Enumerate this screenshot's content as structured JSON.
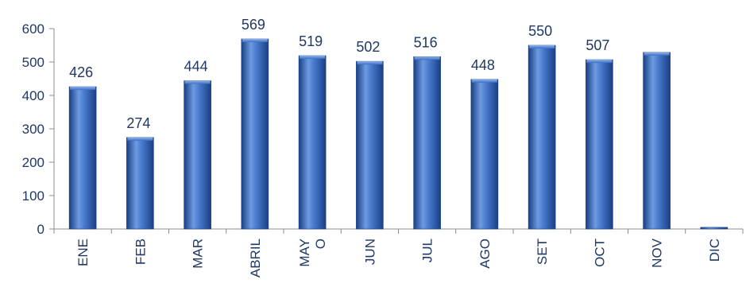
{
  "chart_data": {
    "type": "bar",
    "categories": [
      "ENE",
      "FEB",
      "MAR",
      "ABRIL",
      "MAY\nO",
      "JUN",
      "JUL",
      "AGO",
      "SET",
      "OCT",
      "NOV",
      "DIC"
    ],
    "values": [
      426,
      274,
      444,
      569,
      519,
      502,
      516,
      448,
      550,
      507,
      529,
      5
    ],
    "data_labels": [
      "426",
      "274",
      "444",
      "569",
      "519",
      "502",
      "516",
      "448",
      "550",
      "507",
      "",
      ""
    ],
    "title": "",
    "xlabel": "",
    "ylabel": "",
    "ylim": [
      0,
      600
    ],
    "yticks": [
      "0",
      "100",
      "200",
      "300",
      "400",
      "500",
      "600"
    ],
    "grid": false,
    "legend": "none",
    "bar_color": "#3b6fc4",
    "bar_dark": "#1a3f84",
    "bar_light": "#6d9ae0",
    "label_color": "#1f3864"
  }
}
